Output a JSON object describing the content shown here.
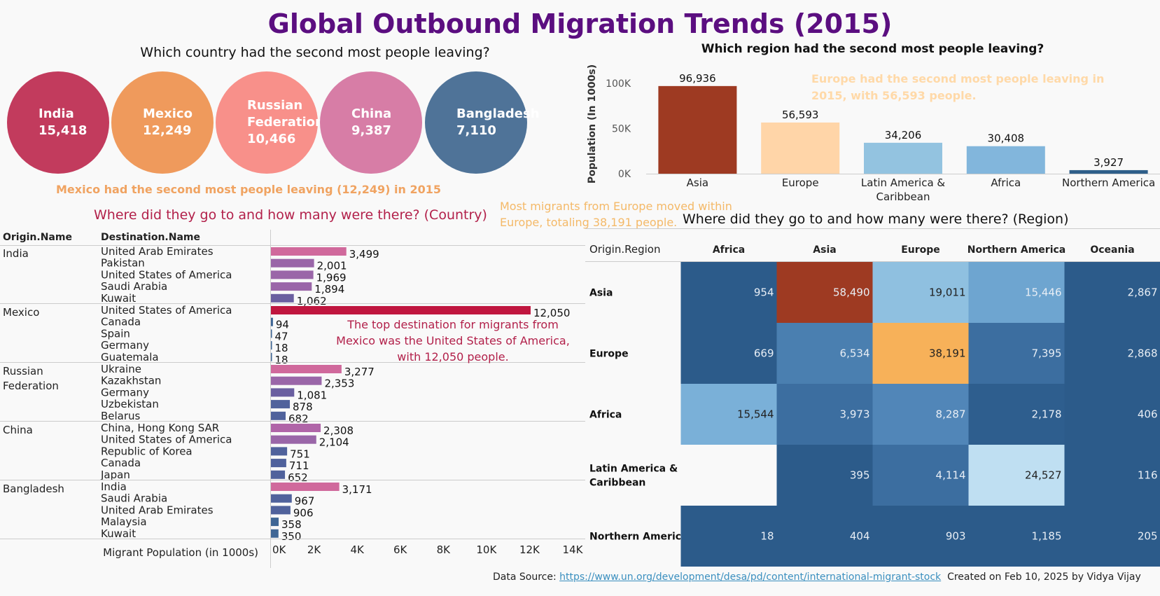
{
  "title": "Global Outbound Migration Trends (2015)",
  "country_question": "Which country had the second most people leaving?",
  "region_question": "Which region had the second most people leaving?",
  "bubbles": [
    {
      "lines": [
        "India"
      ],
      "value": "15,418",
      "color": "#c23b5d"
    },
    {
      "lines": [
        "Mexico"
      ],
      "value": "12,249",
      "color": "#ef9a5c"
    },
    {
      "lines": [
        "Russian",
        "Federation"
      ],
      "value": "10,466",
      "color": "#f8908a"
    },
    {
      "lines": [
        "China"
      ],
      "value": "9,387",
      "color": "#d77da6"
    },
    {
      "lines": [
        "Bangladesh"
      ],
      "value": "7,110",
      "color": "#4f7398"
    }
  ],
  "country_annotation": "Mexico had the second most people leaving (12,249) in 2015",
  "region_annotation": "Europe had the second most people leaving in 2015, with 56,593 people.",
  "country_subtitle": "Where did they go to and how many were there? (Country)",
  "region_subtitle": "Where did they go to and how many were there? (Region)",
  "europe_annotation": "Most migrants from Europe moved within Europe, totaling 38,191 people.",
  "mexico_annotation": [
    "The top destination for migrants from",
    "Mexico was the United States of America,",
    "with 12,050 people."
  ],
  "footer": {
    "source_label": "Data Source: ",
    "source_link": "https://www.un.org/development/desa/pd/content/international-migrant-stock",
    "credit": "Created on Feb 10, 2025 by Vidya Vijay"
  },
  "chart_data": [
    {
      "type": "bar",
      "title": "Which region had the second most people leaving?",
      "ylabel": "Population (In 1000s)",
      "categories": [
        [
          "Asia"
        ],
        [
          "Europe"
        ],
        [
          "Latin America &",
          "Caribbean"
        ],
        [
          "Africa"
        ],
        [
          "Northern America"
        ]
      ],
      "values": [
        96936,
        56593,
        34206,
        30408,
        3927
      ],
      "value_labels": [
        "96,936",
        "56,593",
        "34,206",
        "30,408",
        "3,927"
      ],
      "colors": [
        "#9e3a22",
        "#ffd5a8",
        "#93c3e0",
        "#82b6dc",
        "#2f5f8a"
      ],
      "ylim": [
        0,
        110000
      ],
      "yticks": [
        {
          "v": 0,
          "label": "0K"
        },
        {
          "v": 50000,
          "label": "50K"
        },
        {
          "v": 100000,
          "label": "100K"
        }
      ]
    },
    {
      "type": "bar",
      "orientation": "horizontal",
      "columns": [
        "Origin.Name",
        "Destination.Name"
      ],
      "xlabel": "Migrant Population (in 1000s)",
      "xlim": [
        0,
        14000
      ],
      "xticks": [
        {
          "v": 0,
          "label": "0K"
        },
        {
          "v": 2000,
          "label": "2K"
        },
        {
          "v": 4000,
          "label": "4K"
        },
        {
          "v": 6000,
          "label": "6K"
        },
        {
          "v": 8000,
          "label": "8K"
        },
        {
          "v": 10000,
          "label": "10K"
        },
        {
          "v": 12000,
          "label": "12K"
        },
        {
          "v": 14000,
          "label": "14K"
        }
      ],
      "groups": [
        {
          "origin": [
            "India"
          ],
          "rows": [
            {
              "dest": "United Arab Emirates",
              "value": 3499,
              "label": "3,499",
              "color": "#d0699c"
            },
            {
              "dest": "Pakistan",
              "value": 2001,
              "label": "2,001",
              "color": "#9a66a8"
            },
            {
              "dest": "United States of America",
              "value": 1969,
              "label": "1,969",
              "color": "#9a66a8"
            },
            {
              "dest": "Saudi Arabia",
              "value": 1894,
              "label": "1,894",
              "color": "#9a66a8"
            },
            {
              "dest": "Kuwait",
              "value": 1062,
              "label": "1,062",
              "color": "#6a5fa0"
            }
          ]
        },
        {
          "origin": [
            "Mexico"
          ],
          "rows": [
            {
              "dest": "United States of America",
              "value": 12050,
              "label": "12,050",
              "color": "#c0163f"
            },
            {
              "dest": "Canada",
              "value": 94,
              "label": "94",
              "color": "#3f6695"
            },
            {
              "dest": "Spain",
              "value": 47,
              "label": "47",
              "color": "#3f6695"
            },
            {
              "dest": "Germany",
              "value": 18,
              "label": "18",
              "color": "#3f6695"
            },
            {
              "dest": "Guatemala",
              "value": 18,
              "label": "18",
              "color": "#3f6695"
            }
          ]
        },
        {
          "origin": [
            "Russian",
            "Federation"
          ],
          "rows": [
            {
              "dest": "Ukraine",
              "value": 3277,
              "label": "3,277",
              "color": "#d0699c"
            },
            {
              "dest": "Kazakhstan",
              "value": 2353,
              "label": "2,353",
              "color": "#9a66a8"
            },
            {
              "dest": "Germany",
              "value": 1081,
              "label": "1,081",
              "color": "#6a5fa0"
            },
            {
              "dest": "Uzbekistan",
              "value": 878,
              "label": "878",
              "color": "#50629c"
            },
            {
              "dest": "Belarus",
              "value": 682,
              "label": "682",
              "color": "#50629c"
            }
          ]
        },
        {
          "origin": [
            "China"
          ],
          "rows": [
            {
              "dest": "China, Hong Kong SAR",
              "value": 2308,
              "label": "2,308",
              "color": "#b065a8"
            },
            {
              "dest": "United States of America",
              "value": 2104,
              "label": "2,104",
              "color": "#9a66a8"
            },
            {
              "dest": "Republic of Korea",
              "value": 751,
              "label": "751",
              "color": "#50629c"
            },
            {
              "dest": "Canada",
              "value": 711,
              "label": "711",
              "color": "#50629c"
            },
            {
              "dest": "Japan",
              "value": 652,
              "label": "652",
              "color": "#50629c"
            }
          ]
        },
        {
          "origin": [
            "Bangladesh"
          ],
          "rows": [
            {
              "dest": "India",
              "value": 3171,
              "label": "3,171",
              "color": "#d0699c"
            },
            {
              "dest": "Saudi Arabia",
              "value": 967,
              "label": "967",
              "color": "#50629c"
            },
            {
              "dest": "United Arab Emirates",
              "value": 906,
              "label": "906",
              "color": "#50629c"
            },
            {
              "dest": "Malaysia",
              "value": 358,
              "label": "358",
              "color": "#3f6695"
            },
            {
              "dest": "Kuwait",
              "value": 350,
              "label": "350",
              "color": "#3f6695"
            }
          ]
        }
      ]
    },
    {
      "type": "heatmap",
      "row_header": "Origin.Region",
      "columns": [
        "Africa",
        "Asia",
        "Europe",
        "Northern America",
        "Oceania"
      ],
      "rows": [
        {
          "label": [
            "Asia"
          ],
          "values": [
            954,
            58490,
            19011,
            15446,
            2867
          ],
          "labels": [
            "954",
            "58,490",
            "19,011",
            "15,446",
            "2,867"
          ],
          "colors": [
            "#2c5b8a",
            "#9e3a22",
            "#8fc0e0",
            "#6ea5d0",
            "#2c5b8a"
          ]
        },
        {
          "label": [
            "Europe"
          ],
          "values": [
            669,
            6534,
            38191,
            7395,
            2868
          ],
          "labels": [
            "669",
            "6,534",
            "38,191",
            "7,395",
            "2,868"
          ],
          "colors": [
            "#2c5b8a",
            "#4a7fb0",
            "#f7b159",
            "#3c6ea0",
            "#2c5b8a"
          ]
        },
        {
          "label": [
            "Africa"
          ],
          "values": [
            15544,
            3973,
            8287,
            2178,
            406
          ],
          "labels": [
            "15,544",
            "3,973",
            "8,287",
            "2,178",
            "406"
          ],
          "colors": [
            "#7ab0d8",
            "#3c6ea0",
            "#5186b8",
            "#2e5e8e",
            "#2c5b8a"
          ]
        },
        {
          "label": [
            "Latin America &",
            "Caribbean"
          ],
          "values": [
            null,
            395,
            4114,
            24527,
            116
          ],
          "labels": [
            "",
            "395",
            "4,114",
            "24,527",
            "116"
          ],
          "colors": [
            "#f9f9f9",
            "#2c5b8a",
            "#3c6ea0",
            "#bfdff2",
            "#2c5b8a"
          ]
        },
        {
          "label": [
            "Northern America"
          ],
          "values": [
            18,
            404,
            903,
            1185,
            205
          ],
          "labels": [
            "18",
            "404",
            "903",
            "1,185",
            "205"
          ],
          "colors": [
            "#2c5b8a",
            "#2c5b8a",
            "#2c5b8a",
            "#2c5b8a",
            "#2c5b8a"
          ]
        }
      ]
    }
  ]
}
